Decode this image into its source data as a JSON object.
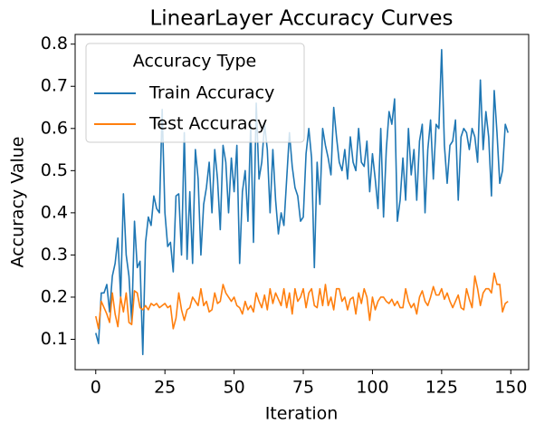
{
  "chart_data": {
    "type": "line",
    "title": "LinearLayer Accuracy Curves",
    "xlabel": "Iteration",
    "ylabel": "Accuracy Value",
    "legend_title": "Accuracy Type",
    "legend": "upper left",
    "grid": false,
    "xlim": [
      -7.45,
      156.45
    ],
    "ylim": [
      0.028,
      0.823
    ],
    "xticks": [
      0,
      25,
      50,
      75,
      100,
      125,
      150
    ],
    "yticks": [
      0.1,
      0.2,
      0.3,
      0.4,
      0.5,
      0.6,
      0.7,
      0.8
    ],
    "x": [
      0,
      1,
      2,
      3,
      4,
      5,
      6,
      7,
      8,
      9,
      10,
      11,
      12,
      13,
      14,
      15,
      16,
      17,
      18,
      19,
      20,
      21,
      22,
      23,
      24,
      25,
      26,
      27,
      28,
      29,
      30,
      31,
      32,
      33,
      34,
      35,
      36,
      37,
      38,
      39,
      40,
      41,
      42,
      43,
      44,
      45,
      46,
      47,
      48,
      49,
      50,
      51,
      52,
      53,
      54,
      55,
      56,
      57,
      58,
      59,
      60,
      61,
      62,
      63,
      64,
      65,
      66,
      67,
      68,
      69,
      70,
      71,
      72,
      73,
      74,
      75,
      76,
      77,
      78,
      79,
      80,
      81,
      82,
      83,
      84,
      85,
      86,
      87,
      88,
      89,
      90,
      91,
      92,
      93,
      94,
      95,
      96,
      97,
      98,
      99,
      100,
      101,
      102,
      103,
      104,
      105,
      106,
      107,
      108,
      109,
      110,
      111,
      112,
      113,
      114,
      115,
      116,
      117,
      118,
      119,
      120,
      121,
      122,
      123,
      124,
      125,
      126,
      127,
      128,
      129,
      130,
      131,
      132,
      133,
      134,
      135,
      136,
      137,
      138,
      139,
      140,
      141,
      142,
      143,
      144,
      145,
      146,
      147,
      148,
      149
    ],
    "series": [
      {
        "name": "Train Accuracy",
        "color": "#1f77b4",
        "values": [
          0.115,
          0.09,
          0.21,
          0.21,
          0.23,
          0.165,
          0.25,
          0.28,
          0.34,
          0.2,
          0.445,
          0.3,
          0.25,
          0.14,
          0.38,
          0.27,
          0.285,
          0.064,
          0.33,
          0.39,
          0.37,
          0.44,
          0.41,
          0.4,
          0.645,
          0.4,
          0.32,
          0.33,
          0.26,
          0.44,
          0.445,
          0.3,
          0.59,
          0.29,
          0.45,
          0.28,
          0.55,
          0.48,
          0.3,
          0.42,
          0.46,
          0.52,
          0.4,
          0.55,
          0.48,
          0.36,
          0.56,
          0.52,
          0.4,
          0.53,
          0.45,
          0.56,
          0.28,
          0.45,
          0.5,
          0.38,
          0.61,
          0.33,
          0.66,
          0.48,
          0.52,
          0.61,
          0.55,
          0.4,
          0.55,
          0.43,
          0.35,
          0.4,
          0.37,
          0.48,
          0.59,
          0.51,
          0.46,
          0.44,
          0.38,
          0.39,
          0.54,
          0.6,
          0.53,
          0.27,
          0.52,
          0.42,
          0.6,
          0.56,
          0.53,
          0.49,
          0.65,
          0.58,
          0.52,
          0.5,
          0.55,
          0.48,
          0.58,
          0.52,
          0.5,
          0.6,
          0.52,
          0.51,
          0.57,
          0.45,
          0.54,
          0.48,
          0.41,
          0.6,
          0.39,
          0.55,
          0.64,
          0.61,
          0.67,
          0.38,
          0.43,
          0.53,
          0.43,
          0.6,
          0.49,
          0.55,
          0.43,
          0.57,
          0.61,
          0.4,
          0.55,
          0.62,
          0.48,
          0.61,
          0.6,
          0.787,
          0.56,
          0.47,
          0.56,
          0.57,
          0.62,
          0.43,
          0.58,
          0.6,
          0.59,
          0.55,
          0.6,
          0.58,
          0.52,
          0.715,
          0.55,
          0.64,
          0.58,
          0.44,
          0.69,
          0.59,
          0.47,
          0.5,
          0.61,
          0.59
        ]
      },
      {
        "name": "Test Accuracy",
        "color": "#ff7f0e",
        "values": [
          0.155,
          0.125,
          0.19,
          0.175,
          0.16,
          0.14,
          0.21,
          0.16,
          0.13,
          0.2,
          0.165,
          0.21,
          0.14,
          0.135,
          0.215,
          0.21,
          0.175,
          0.17,
          0.18,
          0.17,
          0.185,
          0.18,
          0.185,
          0.175,
          0.18,
          0.185,
          0.175,
          0.18,
          0.125,
          0.15,
          0.21,
          0.17,
          0.145,
          0.17,
          0.175,
          0.2,
          0.19,
          0.18,
          0.22,
          0.18,
          0.19,
          0.165,
          0.17,
          0.21,
          0.185,
          0.19,
          0.23,
          0.21,
          0.2,
          0.19,
          0.2,
          0.18,
          0.175,
          0.16,
          0.19,
          0.17,
          0.18,
          0.165,
          0.21,
          0.19,
          0.175,
          0.205,
          0.17,
          0.22,
          0.185,
          0.21,
          0.195,
          0.18,
          0.22,
          0.175,
          0.21,
          0.16,
          0.22,
          0.19,
          0.2,
          0.22,
          0.175,
          0.21,
          0.22,
          0.18,
          0.175,
          0.22,
          0.18,
          0.23,
          0.18,
          0.2,
          0.17,
          0.22,
          0.22,
          0.19,
          0.2,
          0.17,
          0.195,
          0.2,
          0.16,
          0.21,
          0.185,
          0.22,
          0.2,
          0.145,
          0.2,
          0.17,
          0.19,
          0.2,
          0.2,
          0.19,
          0.185,
          0.195,
          0.18,
          0.19,
          0.175,
          0.175,
          0.22,
          0.19,
          0.175,
          0.185,
          0.16,
          0.2,
          0.215,
          0.19,
          0.18,
          0.2,
          0.225,
          0.205,
          0.205,
          0.22,
          0.195,
          0.21,
          0.19,
          0.175,
          0.19,
          0.205,
          0.175,
          0.17,
          0.22,
          0.195,
          0.175,
          0.25,
          0.22,
          0.18,
          0.21,
          0.22,
          0.22,
          0.21,
          0.257,
          0.23,
          0.23,
          0.165,
          0.185,
          0.19
        ]
      }
    ]
  }
}
